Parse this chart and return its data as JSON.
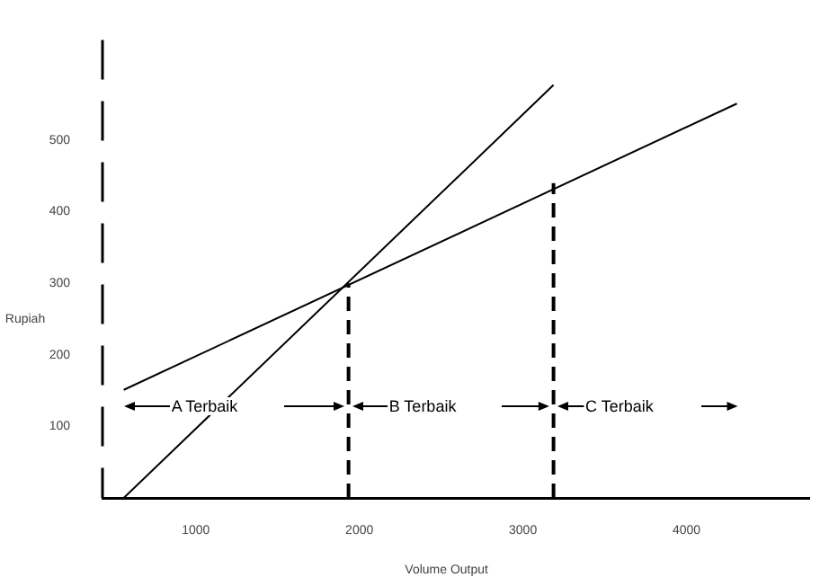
{
  "chart_data": {
    "type": "line",
    "xlabel": "Volume Output",
    "ylabel": "Rupiah",
    "xlim": [
      430,
      4750
    ],
    "xticks": [
      1000,
      2000,
      3000,
      4000
    ],
    "ylim": [
      0,
      640
    ],
    "yticks": [
      100,
      200,
      300,
      400,
      500
    ],
    "grid": false,
    "legend": false,
    "marker": "none",
    "series": [
      {
        "color": "#000000",
        "x": [
          560,
          3187
        ],
        "values": [
          0,
          577
        ]
      },
      {
        "color": "#000000",
        "x": [
          560,
          4308
        ],
        "values": [
          151,
          551
        ]
      },
      {
        "color": "#000000",
        "x": [
          1934,
          1934
        ],
        "values": [
          0,
          300
        ],
        "line_style": "dashed"
      },
      {
        "color": "#000000",
        "x": [
          3187,
          3187
        ],
        "values": [
          0,
          440
        ],
        "line_style": "dashed"
      }
    ],
    "annotations": [
      "A Terbaik",
      "B Terbaik",
      "C Terbaik"
    ]
  }
}
